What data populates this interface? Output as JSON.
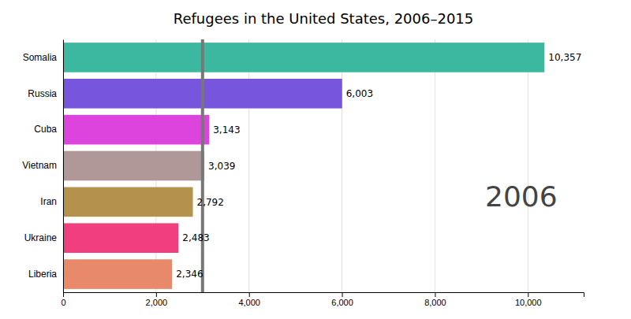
{
  "chart_data": {
    "type": "bar",
    "orientation": "horizontal",
    "title": "Refugees in the United States, 2006–2015",
    "annotation": "2006",
    "categories": [
      "Liberia",
      "Ukraine",
      "Iran",
      "Vietnam",
      "Cuba",
      "Russia",
      "Somalia"
    ],
    "values": [
      2346,
      2483,
      2792,
      3039,
      3143,
      6003,
      10357
    ],
    "value_labels": [
      "2,346",
      "2,483",
      "2,792",
      "3,039",
      "3,143",
      "6,003",
      "10,357"
    ],
    "data_labels": true,
    "colors": [
      "#E8896A",
      "#F03E7E",
      "#B5924C",
      "#B09898",
      "#DD44DD",
      "#7755DD",
      "#3DB8A0"
    ],
    "xlim": [
      0,
      11200
    ],
    "xticks": [
      0,
      {
        "value": 2000,
        "label": "2,000"
      },
      {
        "value": 4000,
        "label": "4,000"
      },
      {
        "value": 6000,
        "label": "6,000"
      },
      {
        "value": 8000,
        "label": "8,000"
      },
      {
        "value": 10000,
        "label": "10,000"
      }
    ],
    "grid": true,
    "reference_lines": [
      {
        "value": 3000,
        "color": "#777777"
      }
    ]
  }
}
